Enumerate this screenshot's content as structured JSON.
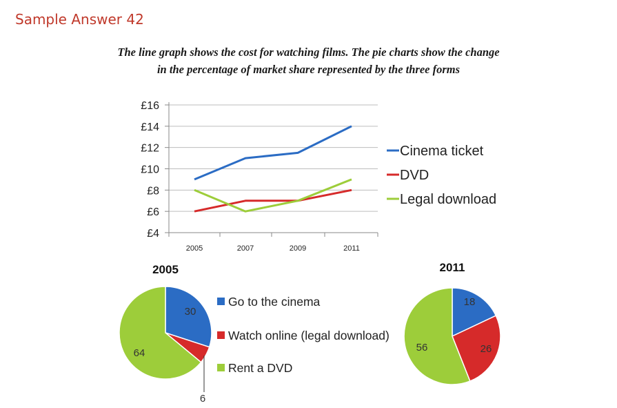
{
  "heading": "Sample Answer 42",
  "subtitle_line1": "The line graph shows the cost for watching films. The pie charts show the change",
  "subtitle_line2": "in the percentage of market share represented by the three forms",
  "colors": {
    "blue": "#2b6cc4",
    "red": "#d62a2a",
    "green": "#9dcd3a",
    "grid": "#bdbdbd",
    "axis": "#888888"
  },
  "chart_data": [
    {
      "type": "line",
      "x": [
        "2005",
        "2007",
        "2009",
        "2011"
      ],
      "y_ticks": [
        "£4",
        "£6",
        "£8",
        "£10",
        "£12",
        "£14",
        "£16"
      ],
      "ylim": [
        4,
        16
      ],
      "grid": true,
      "legend_position": "right",
      "series": [
        {
          "name": "Cinema ticket",
          "color": "#2b6cc4",
          "values": [
            9,
            11,
            11.5,
            14
          ]
        },
        {
          "name": "DVD",
          "color": "#d62a2a",
          "values": [
            6,
            7,
            7,
            8
          ]
        },
        {
          "name": "Legal download",
          "color": "#9dcd3a",
          "values": [
            8,
            6,
            7,
            9
          ]
        }
      ]
    },
    {
      "type": "pie",
      "title": "2005",
      "slices": [
        {
          "label": "Go to the cinema",
          "value": 30,
          "color": "#2b6cc4",
          "text": "30"
        },
        {
          "label": "Watch online (legal download)",
          "value": 6,
          "color": "#d62a2a",
          "text": "6"
        },
        {
          "label": "Rent a DVD",
          "value": 64,
          "color": "#9dcd3a",
          "text": "64"
        }
      ]
    },
    {
      "type": "pie",
      "title": "2011",
      "slices": [
        {
          "label": "Go to the cinema",
          "value": 18,
          "color": "#2b6cc4",
          "text": "18"
        },
        {
          "label": "Watch online (legal download)",
          "value": 26,
          "color": "#d62a2a",
          "text": "26"
        },
        {
          "label": "Rent a DVD",
          "value": 56,
          "color": "#9dcd3a",
          "text": "56"
        }
      ]
    }
  ],
  "pie_legend": [
    "Go to the cinema",
    "Watch online (legal download)",
    "Rent a DVD"
  ]
}
